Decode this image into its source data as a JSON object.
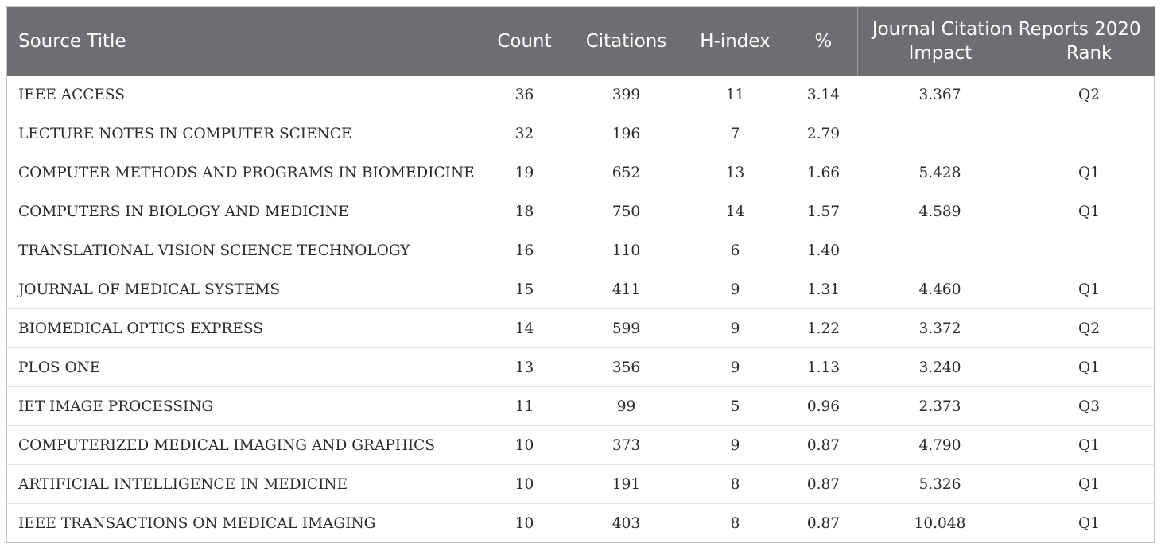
{
  "header": {
    "source_title": "Source Title",
    "count": "Count",
    "citations": "Citations",
    "h_index": "H-index",
    "percent": "%",
    "jcr_group": "Journal Citation Reports 2020",
    "impact": "Impact",
    "rank": "Rank"
  },
  "rows": [
    {
      "title": "IEEE ACCESS",
      "count": "36",
      "citations": "399",
      "h_index": "11",
      "percent": "3.14",
      "impact": "3.367",
      "rank": "Q2"
    },
    {
      "title": "LECTURE NOTES IN COMPUTER SCIENCE",
      "count": "32",
      "citations": "196",
      "h_index": "7",
      "percent": "2.79",
      "impact": "",
      "rank": ""
    },
    {
      "title": "COMPUTER METHODS AND PROGRAMS IN BIOMEDICINE",
      "count": "19",
      "citations": "652",
      "h_index": "13",
      "percent": "1.66",
      "impact": "5.428",
      "rank": "Q1"
    },
    {
      "title": "COMPUTERS IN BIOLOGY AND MEDICINE",
      "count": "18",
      "citations": "750",
      "h_index": "14",
      "percent": "1.57",
      "impact": "4.589",
      "rank": "Q1"
    },
    {
      "title": "TRANSLATIONAL VISION SCIENCE TECHNOLOGY",
      "count": "16",
      "citations": "110",
      "h_index": "6",
      "percent": "1.40",
      "impact": "",
      "rank": ""
    },
    {
      "title": "JOURNAL OF MEDICAL SYSTEMS",
      "count": "15",
      "citations": "411",
      "h_index": "9",
      "percent": "1.31",
      "impact": "4.460",
      "rank": "Q1"
    },
    {
      "title": "BIOMEDICAL OPTICS EXPRESS",
      "count": "14",
      "citations": "599",
      "h_index": "9",
      "percent": "1.22",
      "impact": "3.372",
      "rank": "Q2"
    },
    {
      "title": "PLOS ONE",
      "count": "13",
      "citations": "356",
      "h_index": "9",
      "percent": "1.13",
      "impact": "3.240",
      "rank": "Q1"
    },
    {
      "title": "IET IMAGE PROCESSING",
      "count": "11",
      "citations": "99",
      "h_index": "5",
      "percent": "0.96",
      "impact": "2.373",
      "rank": "Q3"
    },
    {
      "title": "COMPUTERIZED MEDICAL IMAGING AND GRAPHICS",
      "count": "10",
      "citations": "373",
      "h_index": "9",
      "percent": "0.87",
      "impact": "4.790",
      "rank": "Q1"
    },
    {
      "title": "ARTIFICIAL INTELLIGENCE IN MEDICINE",
      "count": "10",
      "citations": "191",
      "h_index": "8",
      "percent": "0.87",
      "impact": "5.326",
      "rank": "Q1"
    },
    {
      "title": "IEEE TRANSACTIONS ON MEDICAL IMAGING",
      "count": "10",
      "citations": "403",
      "h_index": "8",
      "percent": "0.87",
      "impact": "10.048",
      "rank": "Q1"
    }
  ]
}
